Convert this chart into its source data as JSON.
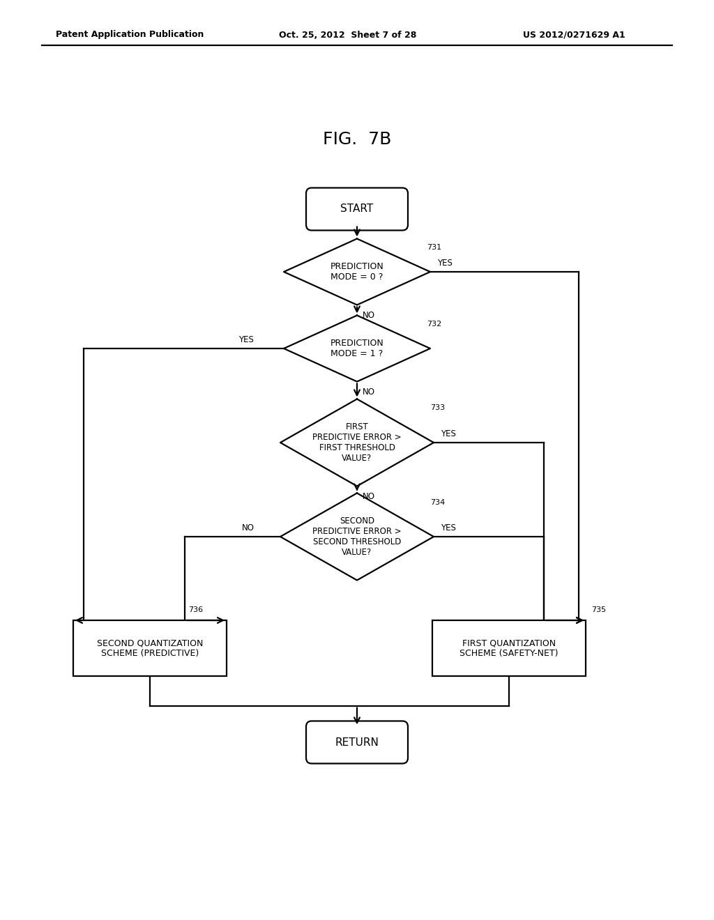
{
  "title": "FIG.  7B",
  "header_left": "Patent Application Publication",
  "header_center": "Oct. 25, 2012  Sheet 7 of 28",
  "header_right": "US 2012/0271629 A1",
  "background_color": "#ffffff",
  "text_color": "#000000",
  "start_label": "START",
  "return_label": "RETURN",
  "d731_label": "PREDICTION\nMODE = 0 ?",
  "d731_ref": "731",
  "d732_label": "PREDICTION\nMODE = 1 ?",
  "d732_ref": "732",
  "d733_label": "FIRST\nPREDICTIVE ERROR >\nFIRST THRESHOLD\nVALUE?",
  "d733_ref": "733",
  "d734_label": "SECOND\nPREDICTIVE ERROR >\nSECOND THRESHOLD\nVALUE?",
  "d734_ref": "734",
  "b735_label": "FIRST QUANTIZATION\nSCHEME (SAFETY-NET)",
  "b735_ref": "735",
  "b736_label": "SECOND QUANTIZATION\nSCHEME (PREDICTIVE)",
  "b736_ref": "736"
}
